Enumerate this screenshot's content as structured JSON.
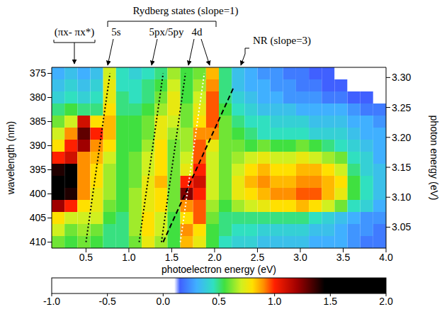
{
  "chart_data": {
    "type": "heatmap",
    "x_label": "photoelectron energy (eV)",
    "y_label": "wavelength (nm)",
    "y2_label": "photon energy (eV)",
    "xlim": [
      0.1,
      4.0
    ],
    "xticks": [
      0.5,
      {
        "value": 1,
        "label": "1.0"
      },
      1.5,
      {
        "value": 2,
        "label": "2.0"
      },
      2.5,
      {
        "value": 3,
        "label": "3.0"
      },
      3.5,
      {
        "value": 4,
        "label": "4.0"
      }
    ],
    "ylim": [
      373.75,
      411.25
    ],
    "yticks": [
      375,
      380,
      385,
      390,
      395,
      400,
      405,
      410
    ],
    "y2lim": [
      3.015,
      3.317
    ],
    "y2ticks": [
      3.05,
      {
        "value": 3.1,
        "label": "3.10"
      },
      3.15,
      {
        "value": 3.2,
        "label": "3.20"
      },
      3.25,
      {
        "value": 3.3,
        "label": "3.30"
      }
    ],
    "x": [
      0.175,
      0.325,
      0.475,
      0.625,
      0.775,
      0.925,
      1.075,
      1.225,
      1.375,
      1.525,
      1.675,
      1.825,
      1.975,
      2.125,
      2.275,
      2.425,
      2.575,
      2.725,
      2.875,
      3.025,
      3.175,
      3.325,
      3.475,
      3.625,
      3.775,
      3.925
    ],
    "y": [
      375,
      377.5,
      380,
      382.5,
      385,
      387.5,
      390,
      392.5,
      395,
      397.5,
      400,
      402.5,
      405,
      407.5,
      410
    ],
    "cells": [
      [
        0.3,
        0.35,
        0.3,
        0.35,
        0.7,
        0.45,
        0.4,
        0.45,
        0.5,
        0.65,
        0.55,
        0.6,
        0.85,
        0.5,
        0.35,
        0.3,
        0.25,
        0.25,
        0.2,
        0.2,
        0.15,
        0.15,
        0.1,
        0.05,
        0.0,
        -0.1
      ],
      [
        0.35,
        0.4,
        0.35,
        0.4,
        0.75,
        0.45,
        0.45,
        0.5,
        0.55,
        0.7,
        0.55,
        0.65,
        0.9,
        0.5,
        0.35,
        0.3,
        0.3,
        0.25,
        0.25,
        0.2,
        0.2,
        0.15,
        0.15,
        0.1,
        0.05,
        0.0
      ],
      [
        0.4,
        0.45,
        0.4,
        0.45,
        0.75,
        0.5,
        0.45,
        0.5,
        0.6,
        0.75,
        0.55,
        0.7,
        0.95,
        0.5,
        0.4,
        0.35,
        0.3,
        0.3,
        0.25,
        0.25,
        0.25,
        0.2,
        0.2,
        0.15,
        0.15,
        0.1
      ],
      [
        0.5,
        0.55,
        0.5,
        0.5,
        0.8,
        0.5,
        0.5,
        0.55,
        0.65,
        0.75,
        0.6,
        0.75,
        0.95,
        0.55,
        0.45,
        0.4,
        0.35,
        0.35,
        0.35,
        0.3,
        0.3,
        0.3,
        0.3,
        0.25,
        0.2,
        0.2
      ],
      [
        0.6,
        0.7,
        1.1,
        0.8,
        0.85,
        0.55,
        0.55,
        0.6,
        0.75,
        0.7,
        0.6,
        0.8,
        0.95,
        0.6,
        0.5,
        0.45,
        0.45,
        0.4,
        0.4,
        0.4,
        0.35,
        0.35,
        0.35,
        0.3,
        0.3,
        0.25
      ],
      [
        0.7,
        0.9,
        1.3,
        1.0,
        0.85,
        0.55,
        0.55,
        0.6,
        0.75,
        0.65,
        0.65,
        0.9,
        0.9,
        0.6,
        0.55,
        0.5,
        0.45,
        0.45,
        0.45,
        0.45,
        0.4,
        0.4,
        0.4,
        0.35,
        0.3,
        0.3
      ],
      [
        0.8,
        1.0,
        1.2,
        0.9,
        0.8,
        0.55,
        0.55,
        0.65,
        0.8,
        0.6,
        0.65,
        0.95,
        0.75,
        0.6,
        0.6,
        0.55,
        0.6,
        0.55,
        0.55,
        0.6,
        0.55,
        0.5,
        0.45,
        0.4,
        0.35,
        0.3
      ],
      [
        1.0,
        1.1,
        0.9,
        0.85,
        0.7,
        0.55,
        0.6,
        0.7,
        0.8,
        0.6,
        0.7,
        0.95,
        0.7,
        0.6,
        0.65,
        0.7,
        0.75,
        0.7,
        0.7,
        0.75,
        0.7,
        0.65,
        0.6,
        0.45,
        0.4,
        0.3
      ],
      [
        1.4,
        1.6,
        0.9,
        0.8,
        0.65,
        0.55,
        0.6,
        0.7,
        0.8,
        0.6,
        0.75,
        1.0,
        0.7,
        0.6,
        0.7,
        0.8,
        0.85,
        0.8,
        0.8,
        0.85,
        0.85,
        0.8,
        0.7,
        0.5,
        0.4,
        0.35
      ],
      [
        1.7,
        1.5,
        0.9,
        0.8,
        0.65,
        0.55,
        0.6,
        0.75,
        0.85,
        0.6,
        1.0,
        1.1,
        0.7,
        0.6,
        0.75,
        0.85,
        0.9,
        0.85,
        0.85,
        0.9,
        0.9,
        0.85,
        0.8,
        0.55,
        0.45,
        0.35
      ],
      [
        1.8,
        1.4,
        0.9,
        0.75,
        0.65,
        0.55,
        0.65,
        0.75,
        0.8,
        0.6,
        1.25,
        1.0,
        0.7,
        0.6,
        0.75,
        0.8,
        0.85,
        0.9,
        0.9,
        0.95,
        0.95,
        0.85,
        0.75,
        0.55,
        0.45,
        0.35
      ],
      [
        1.2,
        1.0,
        0.8,
        0.75,
        0.6,
        0.55,
        0.65,
        0.75,
        0.8,
        0.6,
        0.9,
        0.95,
        0.65,
        0.55,
        0.65,
        0.7,
        0.75,
        0.8,
        0.8,
        0.85,
        0.8,
        0.7,
        0.6,
        0.45,
        0.4,
        0.3
      ],
      [
        0.8,
        0.7,
        0.7,
        0.7,
        0.55,
        0.5,
        0.65,
        0.8,
        0.7,
        0.55,
        0.8,
        0.95,
        0.6,
        0.5,
        0.5,
        0.5,
        0.5,
        0.5,
        0.5,
        0.5,
        0.45,
        0.4,
        0.35,
        0.3,
        0.25,
        0.25
      ],
      [
        0.7,
        0.6,
        0.65,
        0.6,
        0.5,
        0.5,
        0.65,
        0.8,
        0.7,
        0.55,
        0.9,
        0.8,
        0.55,
        0.5,
        0.45,
        0.45,
        0.4,
        0.4,
        0.4,
        0.4,
        0.35,
        0.35,
        0.3,
        0.25,
        0.25,
        0.2
      ],
      [
        0.6,
        0.55,
        0.6,
        0.55,
        0.5,
        0.5,
        0.6,
        0.75,
        0.65,
        0.55,
        0.85,
        0.75,
        0.55,
        0.45,
        0.4,
        0.4,
        0.35,
        0.35,
        0.35,
        0.35,
        0.3,
        0.3,
        0.3,
        0.25,
        0.2,
        0.2
      ]
    ],
    "colorbar": {
      "range": [
        -1,
        2
      ],
      "ticks": [
        {
          "value": -1,
          "label": "-1.0"
        },
        -0.5,
        {
          "value": 0,
          "label": "0.0"
        },
        0.5,
        {
          "value": 1,
          "label": "1.0"
        },
        1.5,
        {
          "value": 2,
          "label": "2.0"
        }
      ]
    },
    "series": [
      {
        "x": [
          0.5,
          0.78
        ],
        "y": [
          410,
          375
        ],
        "color": "#000000",
        "line_style": "dotted"
      },
      {
        "x": [
          1.12,
          1.4
        ],
        "y": [
          410,
          375
        ],
        "color": "#000000",
        "line_style": "dotted"
      },
      {
        "x": [
          1.38,
          1.66
        ],
        "y": [
          410,
          375
        ],
        "color": "#000000",
        "line_style": "dotted"
      },
      {
        "x": [
          1.6,
          1.88
        ],
        "y": [
          410,
          375
        ],
        "color": "#ffffff",
        "line_style": "dotted"
      },
      {
        "x": [
          1.4,
          2.22
        ],
        "y": [
          410,
          378
        ],
        "color": "#000000",
        "line_style": "dashed"
      }
    ],
    "annotations": [
      "Rydberg states (slope=1)",
      "(πx- πx*)",
      "5s",
      "5px/5py",
      "4d",
      "NR (slope=3)"
    ]
  }
}
